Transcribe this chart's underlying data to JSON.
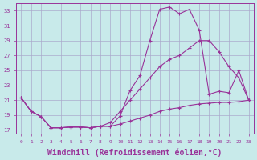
{
  "background_color": "#c8eaea",
  "grid_color": "#aaaacc",
  "line_color": "#993399",
  "marker": "+",
  "xlabel": "Windchill (Refroidissement éolien,°C)",
  "xlabel_fontsize": 7,
  "xtick_labels": [
    "0",
    "1",
    "2",
    "3",
    "4",
    "5",
    "6",
    "7",
    "8",
    "9",
    "10",
    "11",
    "12",
    "13",
    "14",
    "15",
    "16",
    "17",
    "18",
    "19",
    "20",
    "21",
    "22",
    "23"
  ],
  "ytick_labels": [
    "17",
    "19",
    "21",
    "23",
    "25",
    "27",
    "29",
    "31",
    "33"
  ],
  "ylim": [
    16.5,
    34
  ],
  "xlim": [
    -0.5,
    23.5
  ],
  "curve1_x": [
    0,
    1,
    2,
    3,
    4,
    5,
    6,
    7,
    8,
    9,
    10,
    11,
    12,
    13,
    14,
    15,
    16,
    17,
    18,
    19,
    20,
    21,
    22,
    23
  ],
  "curve1_y": [
    21.3,
    19.5,
    18.8,
    17.3,
    17.3,
    17.4,
    17.4,
    17.3,
    17.5,
    17.5,
    18.9,
    22.3,
    24.3,
    29.0,
    33.2,
    33.5,
    32.6,
    33.2,
    30.4,
    21.8,
    22.2,
    22.0,
    25.0,
    21.0
  ],
  "curve2_x": [
    0,
    1,
    2,
    3,
    4,
    5,
    6,
    7,
    8,
    9,
    10,
    11,
    12,
    13,
    14,
    15,
    16,
    17,
    18,
    19,
    20,
    21,
    22,
    23
  ],
  "curve2_y": [
    21.3,
    19.5,
    18.8,
    17.3,
    17.3,
    17.4,
    17.4,
    17.3,
    17.5,
    18.0,
    19.5,
    21.0,
    22.5,
    24.0,
    25.5,
    26.5,
    27.0,
    28.0,
    29.0,
    29.0,
    27.5,
    25.5,
    24.0,
    21.0
  ],
  "curve3_x": [
    0,
    1,
    2,
    3,
    4,
    5,
    6,
    7,
    8,
    9,
    10,
    11,
    12,
    13,
    14,
    15,
    16,
    17,
    18,
    19,
    20,
    21,
    22,
    23
  ],
  "curve3_y": [
    21.3,
    19.5,
    18.8,
    17.3,
    17.3,
    17.4,
    17.4,
    17.3,
    17.5,
    17.5,
    17.8,
    18.2,
    18.6,
    19.0,
    19.5,
    19.8,
    20.0,
    20.3,
    20.5,
    20.6,
    20.7,
    20.7,
    20.8,
    21.0
  ]
}
